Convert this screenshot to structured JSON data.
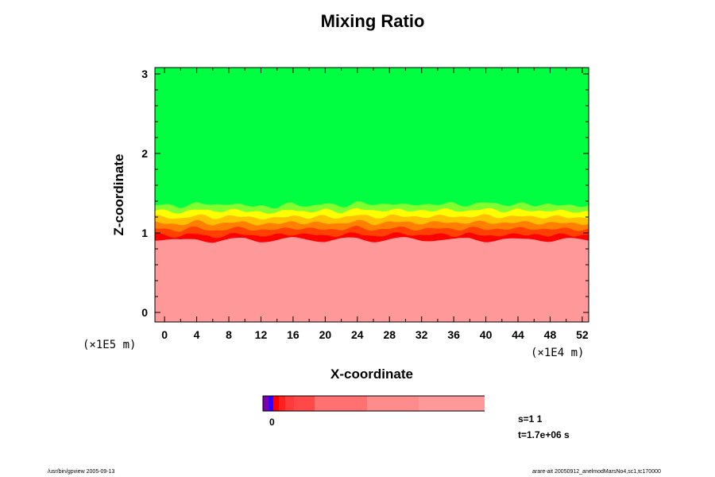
{
  "chart_data": {
    "type": "heatmap",
    "title": "Mixing Ratio",
    "xlabel": "X-coordinate",
    "ylabel": "Z-coordinate",
    "x_scale_label": "(×1E4 m)",
    "y_scale_label": "(×1E5 m)",
    "xlim": [
      -1.2,
      52.8
    ],
    "ylim": [
      -0.12,
      3.08
    ],
    "x_ticks": [
      0,
      4,
      8,
      12,
      16,
      20,
      24,
      28,
      32,
      36,
      40,
      44,
      48,
      52
    ],
    "y_ticks": [
      0,
      1,
      2,
      3
    ],
    "interface_height": [
      [
        -1.2,
        1.43
      ],
      [
        2,
        1.41
      ],
      [
        4,
        1.45
      ],
      [
        6,
        1.43
      ],
      [
        8,
        1.46
      ],
      [
        10,
        1.4
      ],
      [
        12,
        1.43
      ],
      [
        14,
        1.38
      ],
      [
        16,
        1.46
      ],
      [
        18,
        1.4
      ],
      [
        20,
        1.45
      ],
      [
        22,
        1.41
      ],
      [
        24,
        1.46
      ],
      [
        26,
        1.43
      ],
      [
        28,
        1.46
      ],
      [
        30,
        1.41
      ],
      [
        32,
        1.45
      ],
      [
        34,
        1.43
      ],
      [
        36,
        1.45
      ],
      [
        38,
        1.42
      ],
      [
        40,
        1.47
      ],
      [
        42,
        1.43
      ],
      [
        44,
        1.45
      ],
      [
        46,
        1.41
      ],
      [
        48,
        1.46
      ],
      [
        50,
        1.4
      ],
      [
        52.8,
        1.43
      ]
    ],
    "mixing_layer_bottom": [
      [
        -1.2,
        0.98
      ],
      [
        2,
        0.96
      ],
      [
        4,
        0.99
      ],
      [
        6,
        0.95
      ],
      [
        8,
        0.97
      ],
      [
        10,
        0.99
      ],
      [
        12,
        0.96
      ],
      [
        14,
        0.97
      ],
      [
        16,
        0.99
      ],
      [
        18,
        0.98
      ],
      [
        20,
        0.96
      ],
      [
        22,
        0.98
      ],
      [
        24,
        0.99
      ],
      [
        26,
        0.96
      ],
      [
        28,
        0.98
      ],
      [
        30,
        0.99
      ],
      [
        32,
        0.97
      ],
      [
        34,
        0.98
      ],
      [
        36,
        0.97
      ],
      [
        38,
        0.99
      ],
      [
        40,
        0.96
      ],
      [
        42,
        0.98
      ],
      [
        44,
        0.97
      ],
      [
        46,
        0.99
      ],
      [
        48,
        0.96
      ],
      [
        50,
        0.98
      ],
      [
        52.8,
        0.97
      ]
    ],
    "colorbar": {
      "colors": [
        "#7a00b0",
        "#3300ff",
        "#ff0000",
        "#ff2020",
        "#ff3a3a",
        "#ff4848",
        "#ff7070",
        "#ff8c8c",
        "#ff9999"
      ],
      "widths": [
        7,
        6,
        7,
        8,
        11,
        26,
        66,
        65,
        132
      ],
      "label": "0"
    },
    "colors": {
      "upper": "#00ff40",
      "lower": "#ff9999",
      "band": [
        "#00ff40",
        "#80ff30",
        "#ffff00",
        "#ffc000",
        "#ff8000",
        "#ff4000",
        "#ff0000"
      ]
    }
  },
  "status": {
    "s": "s=1 1",
    "t": "t=1.7e+06 s"
  },
  "footer": {
    "left": "/usr/bin/gpview 2005-09-13",
    "right": "arare-ait 20050912_anelmodMarsNo4,sc1,tc170000"
  }
}
